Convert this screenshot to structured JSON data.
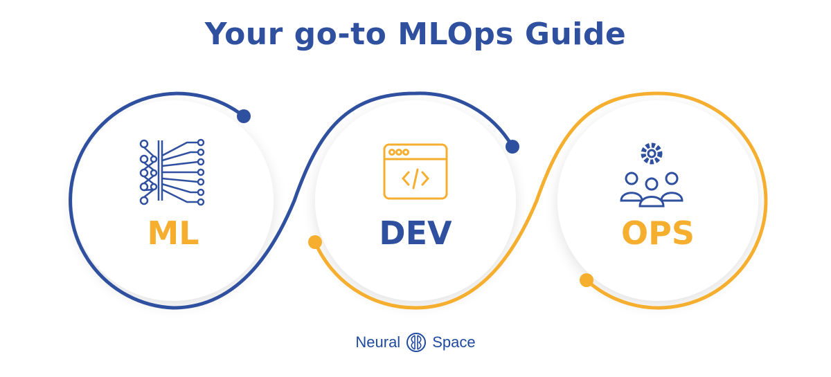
{
  "title": "Your go-to MLOps Guide",
  "stages": [
    {
      "label": "ML",
      "icon": "neural-network-icon",
      "color": "#f5ae2e"
    },
    {
      "label": "DEV",
      "icon": "code-window-icon",
      "color": "#2f4f9f"
    },
    {
      "label": "OPS",
      "icon": "team-gear-icon",
      "color": "#f5ae2e"
    }
  ],
  "colors": {
    "blue": "#2f4f9f",
    "orange": "#f5ae2e"
  },
  "logo": {
    "left": "Neural",
    "right": "Space",
    "icon": "brain-circle-icon"
  }
}
